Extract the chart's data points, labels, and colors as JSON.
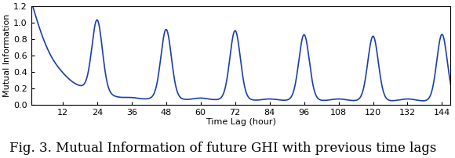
{
  "title": "Fig. 3. Mutual Information of future GHI with previous time lags",
  "xlabel": "Time Lag (hour)",
  "ylabel": "Mutual Information",
  "xlim": [
    1,
    147
  ],
  "ylim": [
    0,
    1.2
  ],
  "xticks": [
    12,
    24,
    36,
    48,
    60,
    72,
    84,
    96,
    108,
    120,
    132,
    144
  ],
  "yticks": [
    0,
    0.2,
    0.4,
    0.6,
    0.8,
    1,
    1.2
  ],
  "line_color": "#1a3faa",
  "line_width": 1.2,
  "bg_color": "#ffffff",
  "figsize": [
    5.8,
    2.02
  ],
  "dpi": 100,
  "caption_fontsize": 12,
  "axis_fontsize": 8,
  "tick_fontsize": 8
}
